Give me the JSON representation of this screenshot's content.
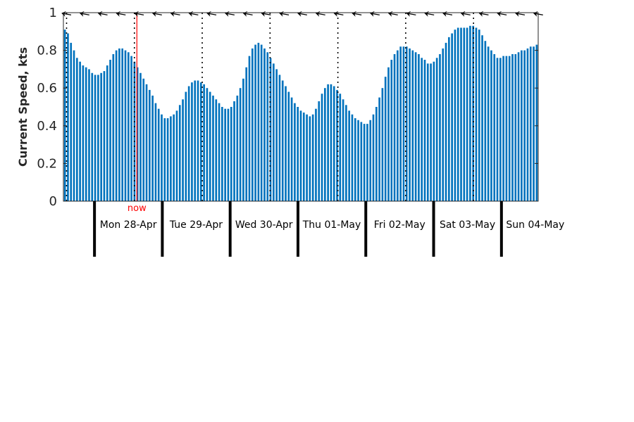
{
  "chart_data": {
    "type": "bar",
    "title": "",
    "xlabel": "",
    "ylabel": "Current Speed, kts",
    "ylim": [
      0,
      1
    ],
    "yticks": [
      "0",
      "0.2",
      "0.4",
      "0.6",
      "0.8",
      "1"
    ],
    "grid": false,
    "bar_color": "#0072bd",
    "now_color": "#ff0000",
    "now_label": "now",
    "now_hour": 45,
    "days": [
      {
        "label": "Mon 28-Apr",
        "noon_hour": 30
      },
      {
        "label": "Tue 29-Apr",
        "noon_hour": 54
      },
      {
        "label": "Wed 30-Apr",
        "noon_hour": 78
      },
      {
        "label": "Thu 01-May",
        "noon_hour": 102
      },
      {
        "label": "Fri 02-May",
        "noon_hour": 126
      },
      {
        "label": "Sat 03-May",
        "noon_hour": 150
      },
      {
        "label": "Sun 04-May",
        "noon_hour": 174
      }
    ],
    "x_hour_range": [
      19,
      187
    ],
    "series": [
      {
        "values": [
          0.91,
          0.89,
          0.84,
          0.8,
          0.76,
          0.74,
          0.72,
          0.71,
          0.7,
          0.68,
          0.67,
          0.67,
          0.68,
          0.69,
          0.72,
          0.75,
          0.78,
          0.8,
          0.81,
          0.81,
          0.8,
          0.79,
          0.77,
          0.74,
          0.71,
          0.68,
          0.65,
          0.62,
          0.59,
          0.56,
          0.52,
          0.49,
          0.46,
          0.44,
          0.44,
          0.45,
          0.46,
          0.48,
          0.51,
          0.54,
          0.58,
          0.61,
          0.63,
          0.64,
          0.64,
          0.63,
          0.62,
          0.6,
          0.58,
          0.56,
          0.54,
          0.52,
          0.5,
          0.49,
          0.49,
          0.5,
          0.53,
          0.56,
          0.6,
          0.65,
          0.71,
          0.77,
          0.81,
          0.83,
          0.84,
          0.83,
          0.81,
          0.79,
          0.76,
          0.73,
          0.7,
          0.67,
          0.64,
          0.61,
          0.58,
          0.55,
          0.52,
          0.5,
          0.48,
          0.47,
          0.46,
          0.45,
          0.46,
          0.49,
          0.53,
          0.57,
          0.6,
          0.62,
          0.62,
          0.61,
          0.59,
          0.57,
          0.54,
          0.51,
          0.48,
          0.46,
          0.44,
          0.43,
          0.42,
          0.41,
          0.41,
          0.43,
          0.46,
          0.5,
          0.55,
          0.6,
          0.66,
          0.71,
          0.75,
          0.78,
          0.8,
          0.82,
          0.82,
          0.82,
          0.81,
          0.8,
          0.79,
          0.78,
          0.76,
          0.75,
          0.73,
          0.73,
          0.74,
          0.76,
          0.78,
          0.81,
          0.84,
          0.87,
          0.89,
          0.91,
          0.92,
          0.92,
          0.92,
          0.92,
          0.93,
          0.93,
          0.92,
          0.91,
          0.88,
          0.85,
          0.82,
          0.8,
          0.78,
          0.76,
          0.76,
          0.77,
          0.77,
          0.77,
          0.78,
          0.78,
          0.79,
          0.8,
          0.8,
          0.81,
          0.82,
          0.82,
          0.83
        ]
      }
    ],
    "direction_arrow_angles_deg": [
      190,
      190,
      190,
      190,
      190,
      190,
      190,
      190,
      190,
      190,
      190,
      190,
      190,
      190,
      190,
      190,
      190,
      190,
      190,
      190,
      190,
      190,
      190,
      190,
      190,
      190,
      190,
      190,
      190,
      190,
      190,
      190,
      190,
      190,
      190,
      190,
      190,
      190,
      190,
      190,
      190,
      190,
      190,
      190,
      190,
      190,
      190,
      190,
      190,
      190,
      190,
      190,
      190,
      190,
      190,
      190,
      190,
      190,
      190,
      190,
      190,
      190,
      190,
      190,
      190,
      190,
      190,
      190,
      190,
      190,
      190,
      190,
      190,
      190,
      190,
      190,
      190,
      190,
      190,
      190,
      190,
      190,
      190,
      190,
      190,
      190,
      190,
      190,
      190,
      190,
      190,
      190,
      190,
      190,
      190,
      190,
      190,
      190,
      190,
      190,
      190,
      190,
      190,
      190,
      190,
      190,
      190,
      190,
      190,
      190,
      190,
      190,
      190,
      190,
      190,
      190,
      190,
      190,
      190,
      190,
      190,
      190,
      190,
      190,
      190,
      190,
      190,
      190,
      190,
      190,
      190,
      190,
      190,
      190,
      190,
      190,
      190,
      190,
      190,
      190,
      190,
      190,
      190,
      190,
      190,
      190,
      190,
      190,
      190,
      190,
      190,
      190,
      190,
      190,
      190,
      190,
      190,
      190,
      190,
      190,
      190,
      190,
      190,
      190,
      190,
      190,
      190,
      190,
      190,
      190
    ],
    "direction_arrow_every": 6
  }
}
